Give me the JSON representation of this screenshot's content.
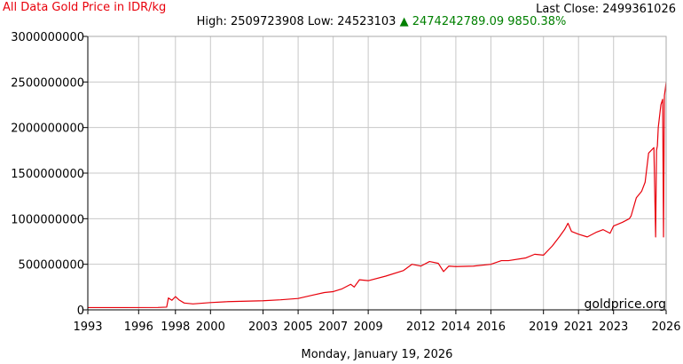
{
  "header": {
    "title": "All Data Gold Price in IDR/kg",
    "last_close_label": "Last Close:",
    "last_close_value": "2499361026",
    "high_label": "High:",
    "high_value": "2509723908",
    "low_label": "Low:",
    "low_value": "24523103",
    "change_arrow": "▲",
    "change_value": "2474242789.09",
    "change_percent": "9850.38%"
  },
  "footer": {
    "date": "Monday, January 19, 2026"
  },
  "watermark": "goldprice.org",
  "colors": {
    "line": "#e8000b",
    "grid": "#c8c8c8",
    "title": "#e8000b",
    "change": "#008000"
  },
  "chart_data": {
    "type": "line",
    "title": "All Data Gold Price in IDR/kg",
    "xlabel": "",
    "ylabel": "",
    "xlim": [
      1993.0,
      2026.0
    ],
    "ylim": [
      0,
      3000000000
    ],
    "x_ticks": [
      "1993",
      "1996",
      "1998",
      "2000",
      "2003",
      "2005",
      "2007",
      "2009",
      "2012",
      "2014",
      "2016",
      "2019",
      "2021",
      "2023",
      "2026"
    ],
    "x_tick_positions": [
      1993.0,
      1995.9,
      1998.0,
      2000.0,
      2003.0,
      2005.0,
      2007.0,
      2009.0,
      2012.0,
      2014.0,
      2016.0,
      2019.0,
      2021.0,
      2023.0,
      2026.0
    ],
    "y_ticks": [
      0,
      500000000,
      1000000000,
      1500000000,
      2000000000,
      2500000000,
      3000000000
    ],
    "grid": true,
    "legend": "none",
    "series": [
      {
        "x": [
          1993.0,
          1995.0,
          1997.0,
          1997.5,
          1997.6,
          1997.8,
          1998.0,
          1998.2,
          1998.5,
          1999.0,
          2000.0,
          2001.0,
          2002.0,
          2003.0,
          2004.0,
          2005.0,
          2005.8,
          2006.5,
          2007.0,
          2007.5,
          2008.0,
          2008.2,
          2008.5,
          2009.0,
          2010.0,
          2011.0,
          2011.5,
          2012.0,
          2012.5,
          2013.0,
          2013.3,
          2013.6,
          2014.0,
          2015.0,
          2016.0,
          2016.6,
          2017.0,
          2018.0,
          2018.5,
          2019.0,
          2019.5,
          2019.9,
          2020.2,
          2020.4,
          2020.6,
          2021.0,
          2021.5,
          2022.0,
          2022.4,
          2022.8,
          2023.0,
          2023.5,
          2023.9,
          2024.0,
          2024.3,
          2024.6,
          2024.8,
          2025.0,
          2025.3,
          2025.4,
          2025.45,
          2025.5,
          2025.55,
          2025.7,
          2025.8,
          2025.85,
          2025.9,
          2025.95,
          2026.0
        ],
        "y": [
          25000000,
          25000000,
          26000000,
          30000000,
          130000000,
          105000000,
          145000000,
          110000000,
          75000000,
          65000000,
          80000000,
          90000000,
          95000000,
          100000000,
          110000000,
          125000000,
          160000000,
          190000000,
          200000000,
          230000000,
          280000000,
          250000000,
          330000000,
          320000000,
          370000000,
          430000000,
          500000000,
          480000000,
          530000000,
          510000000,
          420000000,
          480000000,
          475000000,
          480000000,
          500000000,
          540000000,
          540000000,
          570000000,
          610000000,
          600000000,
          700000000,
          800000000,
          880000000,
          950000000,
          860000000,
          830000000,
          800000000,
          850000000,
          880000000,
          840000000,
          920000000,
          960000000,
          1000000000,
          1030000000,
          1230000000,
          1300000000,
          1400000000,
          1720000000,
          1780000000,
          800000000,
          1750000000,
          1800000000,
          2000000000,
          2250000000,
          2310000000,
          800000000,
          2350000000,
          2420000000,
          2499361026
        ]
      }
    ]
  }
}
